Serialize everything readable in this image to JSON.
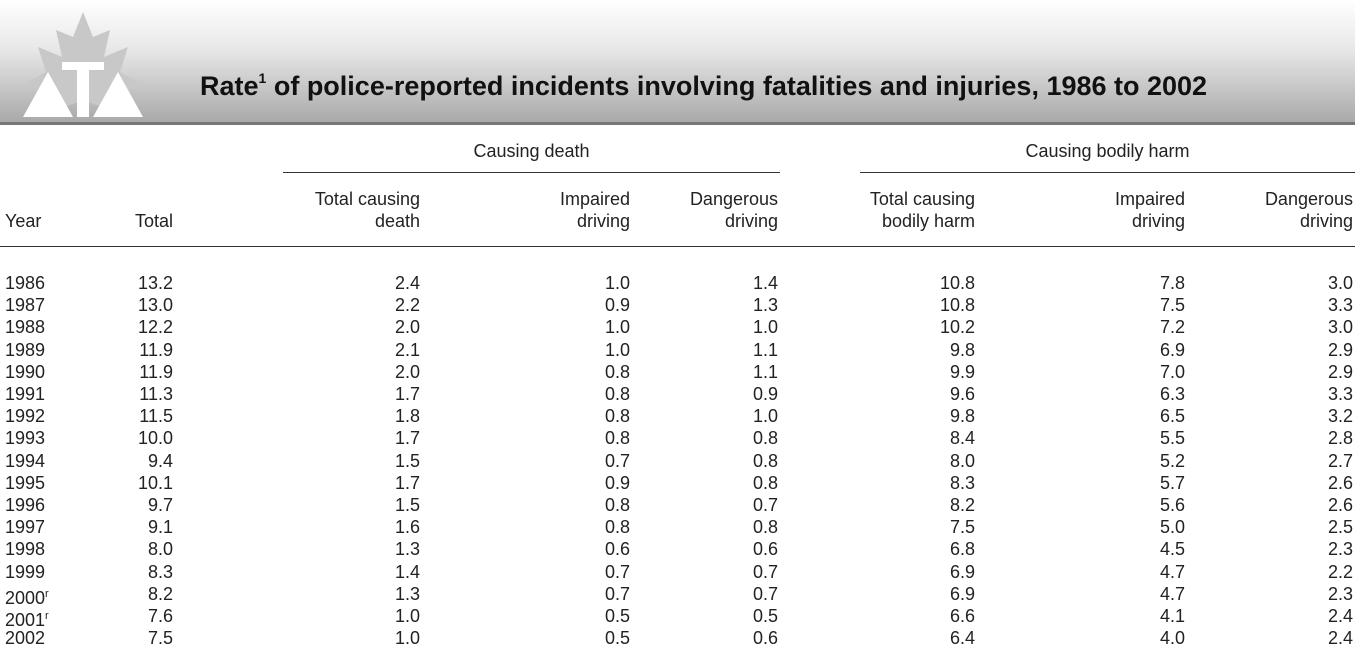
{
  "header": {
    "title": {
      "before": "Rate",
      "note": "1",
      "after": " of police-reported incidents involving fatalities and injuries, 1986 to 2002"
    }
  },
  "table": {
    "groups": [
      "Causing death",
      "Causing bodily harm"
    ],
    "columns": [
      [
        "Year"
      ],
      [
        "Total"
      ],
      [
        "Total causing",
        "death"
      ],
      [
        "Impaired",
        "driving"
      ],
      [
        "Dangerous",
        "driving"
      ],
      [
        "Total causing",
        "bodily harm"
      ],
      [
        "Impaired",
        "driving"
      ],
      [
        "Dangerous",
        "driving"
      ]
    ],
    "rows": [
      {
        "year": "1986",
        "values": [
          "13.2",
          "2.4",
          "1.0",
          "1.4",
          "10.8",
          "7.8",
          "3.0"
        ]
      },
      {
        "year": "1987",
        "values": [
          "13.0",
          "2.2",
          "0.9",
          "1.3",
          "10.8",
          "7.5",
          "3.3"
        ]
      },
      {
        "year": "1988",
        "values": [
          "12.2",
          "2.0",
          "1.0",
          "1.0",
          "10.2",
          "7.2",
          "3.0"
        ]
      },
      {
        "year": "1989",
        "values": [
          "11.9",
          "2.1",
          "1.0",
          "1.1",
          "9.8",
          "6.9",
          "2.9"
        ]
      },
      {
        "year": "1990",
        "values": [
          "11.9",
          "2.0",
          "0.8",
          "1.1",
          "9.9",
          "7.0",
          "2.9"
        ]
      },
      {
        "year": "1991",
        "values": [
          "11.3",
          "1.7",
          "0.8",
          "0.9",
          "9.6",
          "6.3",
          "3.3"
        ]
      },
      {
        "year": "1992",
        "values": [
          "11.5",
          "1.8",
          "0.8",
          "1.0",
          "9.8",
          "6.5",
          "3.2"
        ]
      },
      {
        "year": "1993",
        "values": [
          "10.0",
          "1.7",
          "0.8",
          "0.8",
          "8.4",
          "5.5",
          "2.8"
        ]
      },
      {
        "year": "1994",
        "values": [
          "9.4",
          "1.5",
          "0.7",
          "0.8",
          "8.0",
          "5.2",
          "2.7"
        ]
      },
      {
        "year": "1995",
        "values": [
          "10.1",
          "1.7",
          "0.9",
          "0.8",
          "8.3",
          "5.7",
          "2.6"
        ]
      },
      {
        "year": "1996",
        "values": [
          "9.7",
          "1.5",
          "0.8",
          "0.7",
          "8.2",
          "5.6",
          "2.6"
        ]
      },
      {
        "year": "1997",
        "values": [
          "9.1",
          "1.6",
          "0.8",
          "0.8",
          "7.5",
          "5.0",
          "2.5"
        ]
      },
      {
        "year": "1998",
        "values": [
          "8.0",
          "1.3",
          "0.6",
          "0.6",
          "6.8",
          "4.5",
          "2.3"
        ]
      },
      {
        "year": "1999",
        "values": [
          "8.3",
          "1.4",
          "0.7",
          "0.7",
          "6.9",
          "4.7",
          "2.2"
        ]
      },
      {
        "year": "2000",
        "note": "r",
        "values": [
          "8.2",
          "1.3",
          "0.7",
          "0.7",
          "6.9",
          "4.7",
          "2.3"
        ]
      },
      {
        "year": "2001",
        "note": "r",
        "values": [
          "7.6",
          "1.0",
          "0.5",
          "0.5",
          "6.6",
          "4.1",
          "2.4"
        ]
      },
      {
        "year": "2002",
        "values": [
          "7.5",
          "1.0",
          "0.5",
          "0.6",
          "6.4",
          "4.0",
          "2.4"
        ]
      }
    ]
  }
}
